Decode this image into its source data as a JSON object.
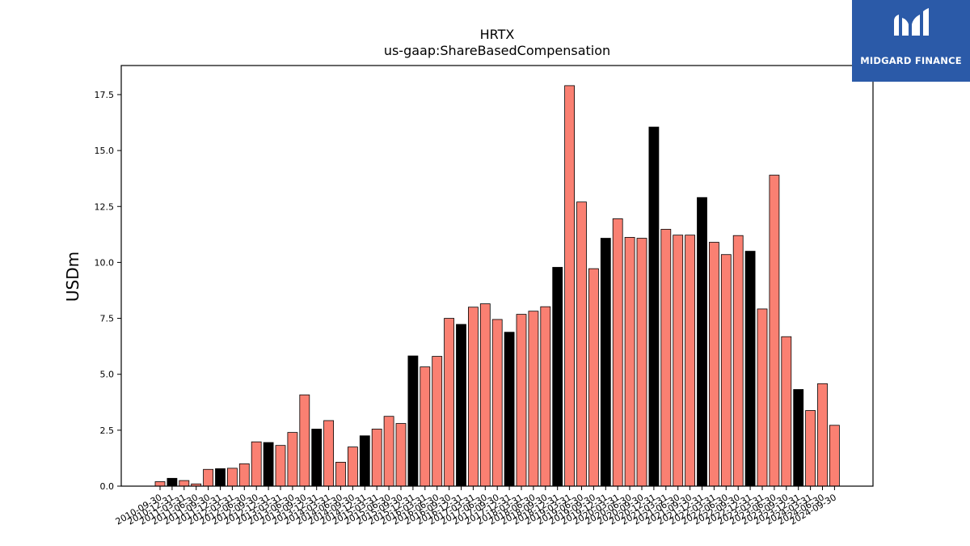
{
  "chart_data": {
    "type": "bar",
    "title": "HRTX",
    "subtitle": "us-gaap:ShareBasedCompensation",
    "ylabel": "USDm",
    "xlabel": "",
    "ylim": [
      0,
      18.8
    ],
    "yticks": [
      "0.0",
      "2.5",
      "5.0",
      "7.5",
      "10.0",
      "12.5",
      "15.0",
      "17.5"
    ],
    "grid": false,
    "colors": {
      "quarter": "#fa8072",
      "year_end": "#000000",
      "edge": "#000000"
    },
    "categories": [
      "2010-09-30",
      "2010-12-31",
      "2011-03-31",
      "2011-06-30",
      "2011-09-30",
      "2011-12-31",
      "2012-03-31",
      "2012-06-30",
      "2012-09-30",
      "2012-12-31",
      "2013-03-31",
      "2013-06-30",
      "2013-09-30",
      "2013-12-31",
      "2014-03-31",
      "2014-06-30",
      "2014-09-30",
      "2014-12-31",
      "2015-03-31",
      "2015-06-30",
      "2015-09-30",
      "2015-12-31",
      "2016-03-31",
      "2016-06-30",
      "2016-09-30",
      "2016-12-31",
      "2017-03-31",
      "2017-06-30",
      "2017-09-30",
      "2017-12-31",
      "2018-03-31",
      "2018-06-30",
      "2018-09-30",
      "2018-12-31",
      "2019-03-31",
      "2019-06-30",
      "2019-09-30",
      "2019-12-31",
      "2020-03-31",
      "2020-06-30",
      "2020-09-30",
      "2020-12-31",
      "2021-03-31",
      "2021-06-30",
      "2021-09-30",
      "2021-12-31",
      "2022-03-31",
      "2022-06-30",
      "2022-09-30",
      "2022-12-31",
      "2023-03-31",
      "2023-06-30",
      "2023-09-30",
      "2023-12-31",
      "2024-03-31",
      "2024-06-30",
      "2024-09-30"
    ],
    "values": [
      0.2,
      0.35,
      0.25,
      0.1,
      0.75,
      0.78,
      0.8,
      1.0,
      1.98,
      1.95,
      1.82,
      2.4,
      4.08,
      2.55,
      2.93,
      1.07,
      1.75,
      2.25,
      2.55,
      3.12,
      2.8,
      5.82,
      5.33,
      5.8,
      7.5,
      7.23,
      8.0,
      8.15,
      7.45,
      6.88,
      7.68,
      7.82,
      8.02,
      9.78,
      17.9,
      12.7,
      9.72,
      11.08,
      11.95,
      11.12,
      11.08,
      16.05,
      11.48,
      11.22,
      11.22,
      12.9,
      10.9,
      10.35,
      11.2,
      10.5,
      7.92,
      13.9,
      6.68,
      4.32,
      3.38,
      4.58,
      2.72
    ],
    "year_end_flags": [
      false,
      true,
      false,
      false,
      false,
      true,
      false,
      false,
      false,
      true,
      false,
      false,
      false,
      true,
      false,
      false,
      false,
      true,
      false,
      false,
      false,
      true,
      false,
      false,
      false,
      true,
      false,
      false,
      false,
      true,
      false,
      false,
      false,
      true,
      false,
      false,
      false,
      true,
      false,
      false,
      false,
      true,
      false,
      false,
      false,
      true,
      false,
      false,
      false,
      true,
      false,
      false,
      false,
      true,
      false,
      false,
      false
    ]
  },
  "logo": {
    "text": "MIDGARD FINANCE",
    "color": "#2b5aa8"
  }
}
